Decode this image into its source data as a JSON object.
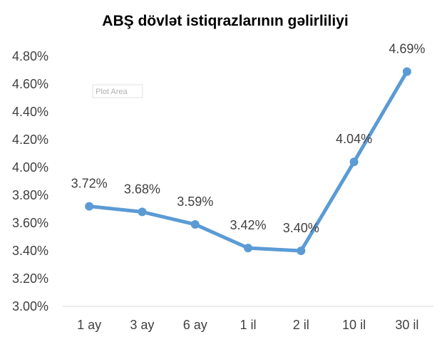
{
  "chart_data": {
    "type": "line",
    "title": "ABŞ dövlət istiqrazlarının gəlirliliyi",
    "categories": [
      "1 ay",
      "3 ay",
      "6 ay",
      "1 il",
      "2 il",
      "10 il",
      "30 il"
    ],
    "series": [
      {
        "values": [
          3.72,
          3.68,
          3.59,
          3.42,
          3.4,
          4.04,
          4.69
        ],
        "labels": [
          "3.72%",
          "3.68%",
          "3.59%",
          "3.42%",
          "3.40%",
          "4.04%",
          "4.69%"
        ],
        "color": "#5B9BD5"
      }
    ],
    "ylim": [
      3.0,
      4.8
    ],
    "yticks": [
      "3.00%",
      "3.20%",
      "3.40%",
      "3.60%",
      "3.80%",
      "4.00%",
      "4.20%",
      "4.40%",
      "4.60%",
      "4.80%"
    ],
    "grid": false,
    "legend": "none"
  },
  "tooltip": {
    "text": "Plot Area"
  }
}
